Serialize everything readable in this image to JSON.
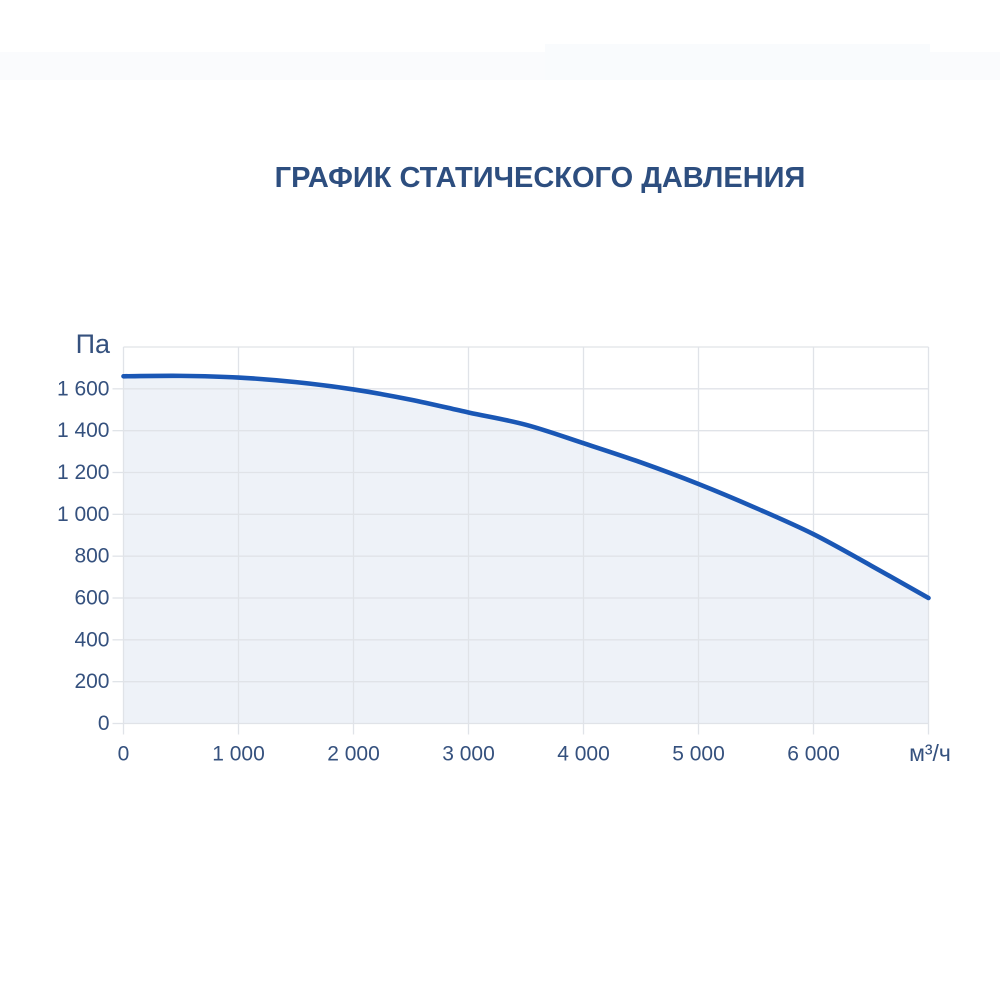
{
  "title": "ГРАФИК СТАТИЧЕСКОГО ДАВЛЕНИЯ",
  "chart_data": {
    "type": "area",
    "title": "ГРАФИК СТАТИЧЕСКОГО ДАВЛЕНИЯ",
    "xlabel": "м³/ч",
    "ylabel": "Па",
    "x": [
      0,
      500,
      1000,
      1500,
      2000,
      2500,
      3000,
      3500,
      4000,
      4500,
      5000,
      5500,
      6000,
      6500,
      7000
    ],
    "y": [
      1660,
      1662,
      1654,
      1632,
      1597,
      1548,
      1487,
      1428,
      1340,
      1248,
      1145,
      1030,
      905,
      755,
      600
    ],
    "xlim": [
      0,
      7000
    ],
    "ylim": [
      0,
      1800
    ],
    "x_ticks": [
      0,
      1000,
      2000,
      3000,
      4000,
      5000,
      6000
    ],
    "x_tick_labels": [
      "0",
      "1 000",
      "2 000",
      "3 000",
      "4 000",
      "5 000",
      "6 000"
    ],
    "y_ticks": [
      0,
      200,
      400,
      600,
      800,
      1000,
      1200,
      1400,
      1600
    ],
    "y_tick_labels": [
      "0",
      "200",
      "400",
      "600",
      "800",
      "1 000",
      "1 200",
      "1 400",
      "1 600"
    ],
    "grid": true,
    "legend": false,
    "colors": {
      "line": "#1a57b5",
      "fill": "#eef2f8",
      "grid": "#e0e3e8",
      "tick_label": "#35517e",
      "title": "#2d4e7f"
    }
  }
}
